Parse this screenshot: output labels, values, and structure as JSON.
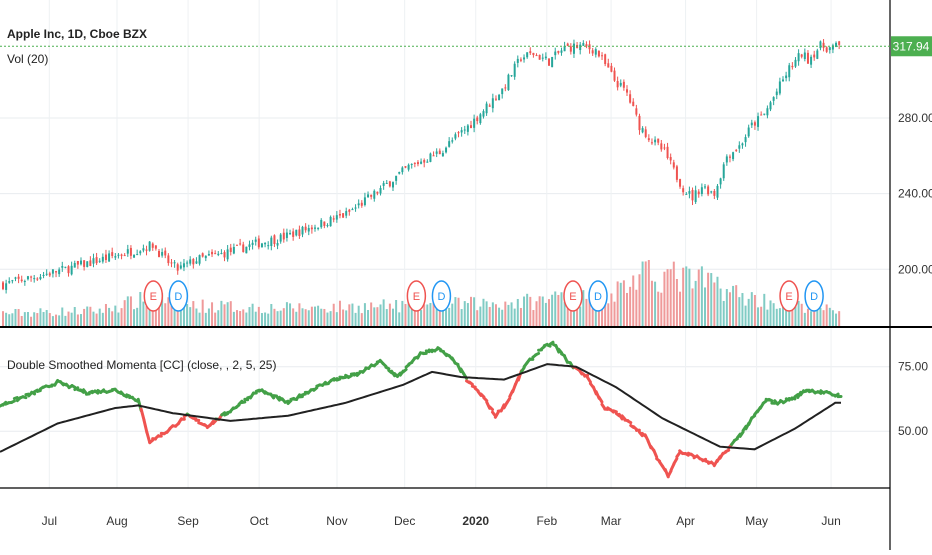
{
  "chart_data": [
    {
      "type": "candlestick",
      "title": "Apple Inc, 1D, Cboe BZX",
      "symbol": "Apple Inc",
      "interval": "1D",
      "exchange": "Cboe BZX",
      "volume_label": "Vol (20)",
      "ylim": [
        170,
        335
      ],
      "yticks": [
        {
          "value": 280,
          "label": "280.00"
        },
        {
          "value": 240,
          "label": "240.00"
        },
        {
          "value": 200,
          "label": "200.00"
        }
      ],
      "last_price": {
        "value": 317.94,
        "label": "317.94"
      },
      "colors": {
        "up": "#26a69a",
        "down": "#ef5350",
        "last_price": "#4caf50"
      },
      "close_anchors": [
        [
          0,
          192
        ],
        [
          20,
          200
        ],
        [
          40,
          209
        ],
        [
          48,
          213
        ],
        [
          52,
          205
        ],
        [
          56,
          200
        ],
        [
          62,
          205
        ],
        [
          70,
          208
        ],
        [
          80,
          213
        ],
        [
          90,
          217
        ],
        [
          100,
          223
        ],
        [
          110,
          229
        ],
        [
          120,
          241
        ],
        [
          130,
          254
        ],
        [
          140,
          262
        ],
        [
          150,
          277
        ],
        [
          160,
          295
        ],
        [
          166,
          312
        ],
        [
          170,
          314
        ],
        [
          175,
          310
        ],
        [
          180,
          317
        ],
        [
          185,
          318
        ],
        [
          190,
          316
        ],
        [
          196,
          300
        ],
        [
          200,
          293
        ],
        [
          204,
          276
        ],
        [
          208,
          268
        ],
        [
          212,
          262
        ],
        [
          215,
          252
        ],
        [
          218,
          243
        ],
        [
          221,
          238
        ],
        [
          224,
          244
        ],
        [
          228,
          240
        ],
        [
          232,
          260
        ],
        [
          236,
          265
        ],
        [
          240,
          276
        ],
        [
          244,
          282
        ],
        [
          248,
          294
        ],
        [
          252,
          306
        ],
        [
          256,
          314
        ],
        [
          258,
          311
        ],
        [
          262,
          318
        ],
        [
          265,
          317
        ],
        [
          268,
          318
        ]
      ],
      "volume_anchors": [
        [
          0,
          0.25
        ],
        [
          30,
          0.3
        ],
        [
          48,
          0.55
        ],
        [
          60,
          0.4
        ],
        [
          90,
          0.35
        ],
        [
          130,
          0.4
        ],
        [
          160,
          0.45
        ],
        [
          175,
          0.5
        ],
        [
          180,
          0.7
        ],
        [
          190,
          0.45
        ],
        [
          198,
          0.75
        ],
        [
          204,
          0.95
        ],
        [
          212,
          1.0
        ],
        [
          220,
          0.9
        ],
        [
          228,
          0.85
        ],
        [
          236,
          0.6
        ],
        [
          248,
          0.45
        ],
        [
          260,
          0.35
        ],
        [
          268,
          0.3
        ]
      ],
      "earnings_markers": [
        {
          "label": "E",
          "index": 48,
          "color": "#ef5350"
        },
        {
          "label": "D",
          "index": 56,
          "color": "#2196f3"
        },
        {
          "label": "E",
          "index": 132,
          "color": "#ef5350"
        },
        {
          "label": "D",
          "index": 140,
          "color": "#2196f3"
        },
        {
          "label": "E",
          "index": 182,
          "color": "#ef5350"
        },
        {
          "label": "D",
          "index": 190,
          "color": "#2196f3"
        },
        {
          "label": "E",
          "index": 251,
          "color": "#ef5350"
        },
        {
          "label": "D",
          "index": 259,
          "color": "#2196f3"
        }
      ]
    },
    {
      "type": "line",
      "title": "Double Smoothed Momenta [CC] (close, , 2, 5, 25)",
      "ylim": [
        28,
        90
      ],
      "yticks": [
        {
          "value": 75,
          "label": "75.00"
        },
        {
          "value": 50,
          "label": "50.00"
        }
      ],
      "series": [
        {
          "name": "Double Smoothed Momenta",
          "up_color": "#43a047",
          "down_color": "#ef5350",
          "anchors": [
            [
              0,
              60
            ],
            [
              10,
              64
            ],
            [
              20,
              69
            ],
            [
              30,
              65
            ],
            [
              40,
              66
            ],
            [
              48,
              62
            ],
            [
              52,
              46
            ],
            [
              58,
              50
            ],
            [
              65,
              56
            ],
            [
              72,
              52
            ],
            [
              80,
              58
            ],
            [
              90,
              66
            ],
            [
              100,
              61
            ],
            [
              108,
              66
            ],
            [
              116,
              70
            ],
            [
              124,
              72
            ],
            [
              132,
              77
            ],
            [
              138,
              71
            ],
            [
              146,
              80
            ],
            [
              152,
              82
            ],
            [
              158,
              77
            ],
            [
              162,
              70
            ],
            [
              168,
              63
            ],
            [
              172,
              56
            ],
            [
              176,
              61
            ],
            [
              182,
              75
            ],
            [
              188,
              82
            ],
            [
              192,
              84
            ],
            [
              198,
              76
            ],
            [
              204,
              71
            ],
            [
              210,
              59
            ],
            [
              214,
              57
            ],
            [
              220,
              52
            ],
            [
              224,
              48
            ],
            [
              228,
              40
            ],
            [
              232,
              33
            ],
            [
              236,
              42
            ],
            [
              242,
              40
            ],
            [
              248,
              37
            ],
            [
              252,
              42
            ],
            [
              258,
              50
            ],
            [
              262,
              56
            ],
            [
              266,
              62
            ],
            [
              270,
              61
            ],
            [
              276,
              63
            ],
            [
              280,
              66
            ],
            [
              286,
              65
            ],
            [
              290,
              64
            ]
          ]
        },
        {
          "name": "Signal",
          "color": "#212121",
          "anchors": [
            [
              0,
              42
            ],
            [
              20,
              53
            ],
            [
              40,
              59
            ],
            [
              48,
              60
            ],
            [
              60,
              57
            ],
            [
              80,
              54
            ],
            [
              100,
              56
            ],
            [
              120,
              61
            ],
            [
              140,
              68
            ],
            [
              150,
              73
            ],
            [
              160,
              71
            ],
            [
              175,
              70
            ],
            [
              190,
              76
            ],
            [
              200,
              75
            ],
            [
              214,
              67
            ],
            [
              230,
              55
            ],
            [
              250,
              44
            ],
            [
              262,
              43
            ],
            [
              276,
              51
            ],
            [
              290,
              61
            ]
          ]
        }
      ]
    }
  ],
  "x_axis": {
    "labels": [
      {
        "label": "Jul",
        "index": 10
      },
      {
        "label": "Aug",
        "index": 30
      },
      {
        "label": "Sep",
        "index": 51
      },
      {
        "label": "Oct",
        "index": 72
      },
      {
        "label": "Nov",
        "index": 95
      },
      {
        "label": "Dec",
        "index": 115
      },
      {
        "label": "2020",
        "index": 136,
        "bold": true
      },
      {
        "label": "Feb",
        "index": 157
      },
      {
        "label": "Mar",
        "index": 176
      },
      {
        "label": "Apr",
        "index": 198
      },
      {
        "label": "May",
        "index": 219
      },
      {
        "label": "Jun",
        "index": 241
      }
    ]
  }
}
